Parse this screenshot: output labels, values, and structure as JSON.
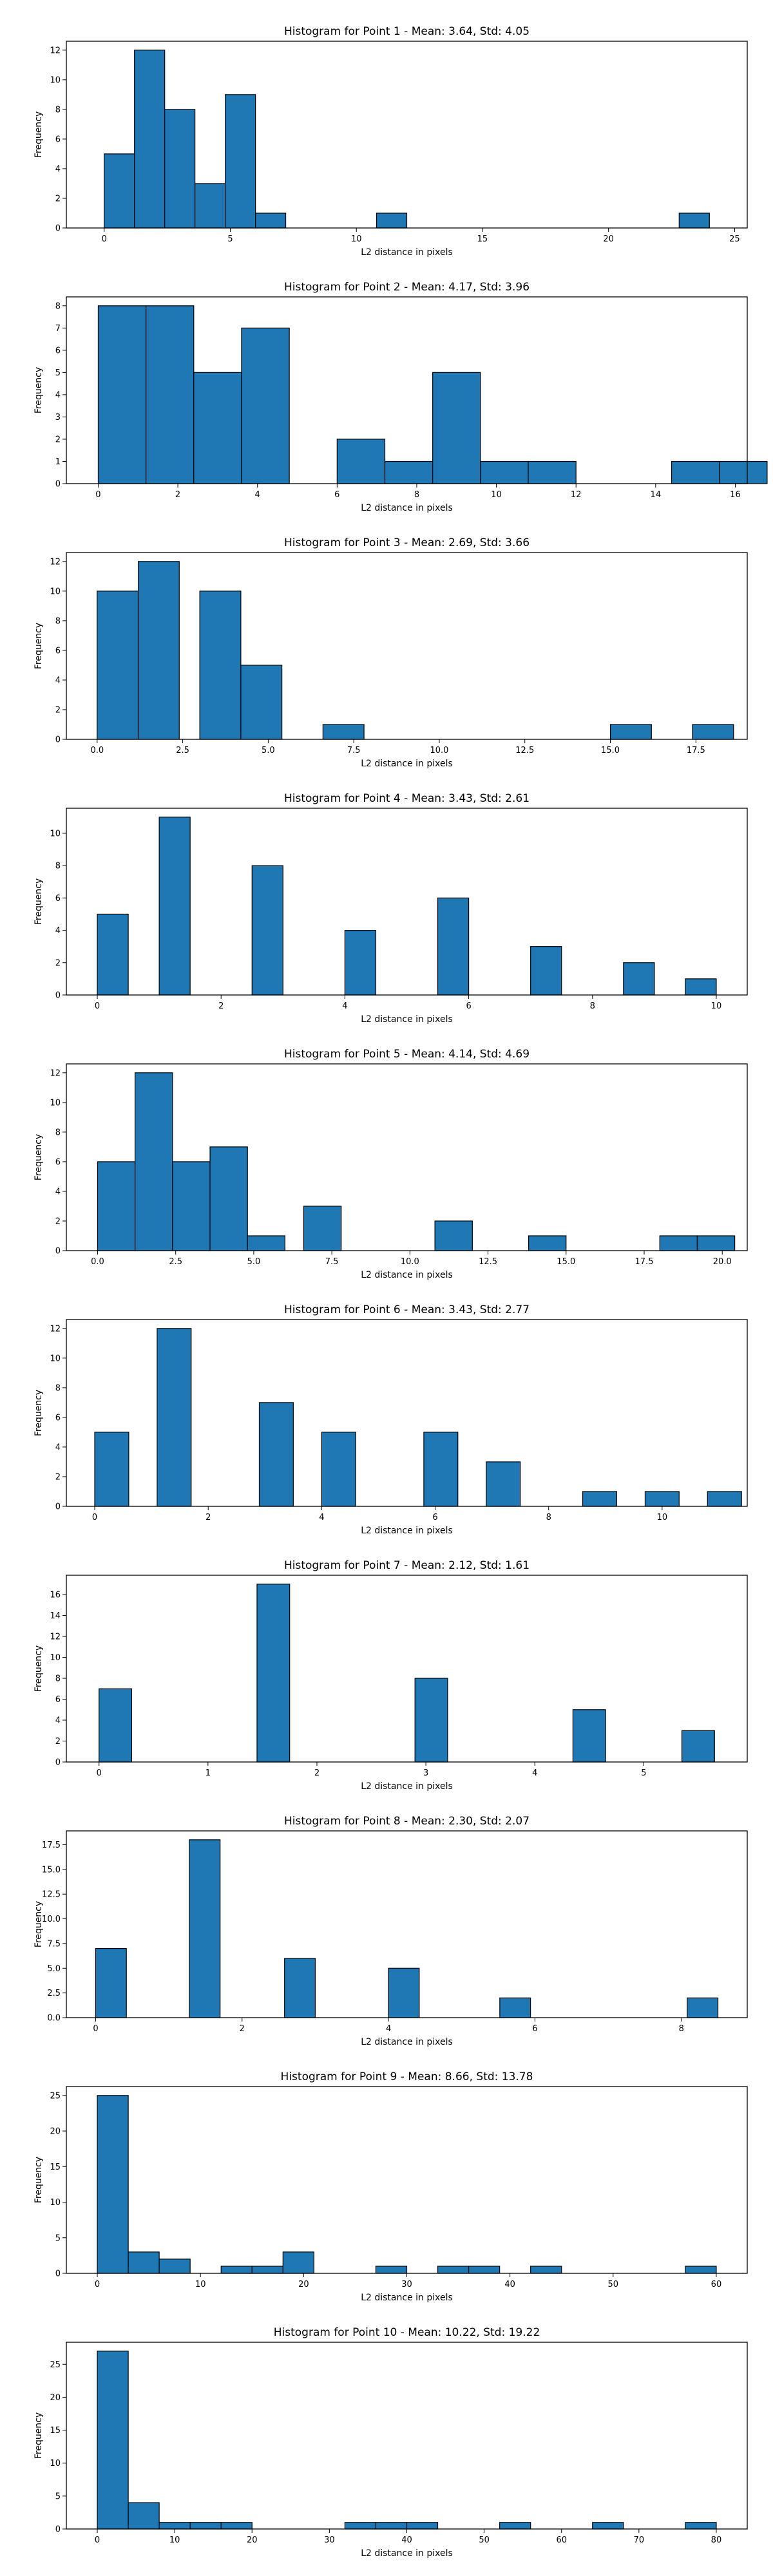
{
  "chart_data": [
    {
      "type": "bar",
      "title": "Histogram for Point 1 - Mean: 3.64, Std: 4.05",
      "xlabel": "L2 distance in pixels",
      "ylabel": "Frequency",
      "xlim": [
        -1.5,
        25.5
      ],
      "ylim": [
        0,
        12.6
      ],
      "xticks": [
        0,
        5,
        10,
        15,
        20,
        25
      ],
      "yticks": [
        0,
        2,
        4,
        6,
        8,
        10,
        12
      ],
      "bins": [
        {
          "x0": 0.0,
          "x1": 1.2,
          "value": 5
        },
        {
          "x0": 1.2,
          "x1": 2.4,
          "value": 12
        },
        {
          "x0": 2.4,
          "x1": 3.6,
          "value": 8
        },
        {
          "x0": 3.6,
          "x1": 4.8,
          "value": 3
        },
        {
          "x0": 4.8,
          "x1": 6.0,
          "value": 9
        },
        {
          "x0": 6.0,
          "x1": 7.2,
          "value": 1
        },
        {
          "x0": 10.8,
          "x1": 12.0,
          "value": 1
        },
        {
          "x0": 22.8,
          "x1": 24.0,
          "value": 1
        }
      ]
    },
    {
      "type": "bar",
      "title": "Histogram for Point 2 - Mean: 4.17, Std: 3.96",
      "xlabel": "L2 distance in pixels",
      "ylabel": "Frequency",
      "xlim": [
        -0.8,
        16.3
      ],
      "ylim": [
        0,
        8.4
      ],
      "xticks": [
        0,
        2,
        4,
        6,
        8,
        10,
        12,
        14,
        16
      ],
      "yticks": [
        0,
        1,
        2,
        3,
        4,
        5,
        6,
        7,
        8
      ],
      "bins": [
        {
          "x0": 0.0,
          "x1": 1.2,
          "value": 8
        },
        {
          "x0": 1.2,
          "x1": 2.4,
          "value": 8
        },
        {
          "x0": 2.4,
          "x1": 3.6,
          "value": 5
        },
        {
          "x0": 3.6,
          "x1": 4.8,
          "value": 7
        },
        {
          "x0": 6.0,
          "x1": 7.2,
          "value": 2
        },
        {
          "x0": 7.2,
          "x1": 8.4,
          "value": 1
        },
        {
          "x0": 8.4,
          "x1": 9.6,
          "value": 5
        },
        {
          "x0": 9.6,
          "x1": 10.8,
          "value": 1
        },
        {
          "x0": 10.8,
          "x1": 12.0,
          "value": 1
        },
        {
          "x0": 14.4,
          "x1": 15.6,
          "value": 1
        },
        {
          "x0": 15.6,
          "x1": 16.8,
          "value": 1
        }
      ]
    },
    {
      "type": "bar",
      "title": "Histogram for Point 3 - Mean: 2.69, Std: 3.66",
      "xlabel": "L2 distance in pixels",
      "ylabel": "Frequency",
      "xlim": [
        -0.9,
        19.0
      ],
      "ylim": [
        0,
        12.6
      ],
      "xticks": [
        0.0,
        2.5,
        5.0,
        7.5,
        10.0,
        12.5,
        15.0,
        17.5
      ],
      "yticks": [
        0,
        2,
        4,
        6,
        8,
        10,
        12
      ],
      "bins": [
        {
          "x0": 0.0,
          "x1": 1.2,
          "value": 10
        },
        {
          "x0": 1.2,
          "x1": 2.4,
          "value": 12
        },
        {
          "x0": 3.0,
          "x1": 4.2,
          "value": 10
        },
        {
          "x0": 4.2,
          "x1": 5.4,
          "value": 5
        },
        {
          "x0": 6.6,
          "x1": 7.8,
          "value": 1
        },
        {
          "x0": 15.0,
          "x1": 16.2,
          "value": 1
        },
        {
          "x0": 17.4,
          "x1": 18.6,
          "value": 1
        }
      ]
    },
    {
      "type": "bar",
      "title": "Histogram for Point 4 - Mean: 3.43, Std: 2.61",
      "xlabel": "L2 distance in pixels",
      "ylabel": "Frequency",
      "xlim": [
        -0.5,
        10.5
      ],
      "ylim": [
        0,
        11.55
      ],
      "xticks": [
        0,
        2,
        4,
        6,
        8,
        10
      ],
      "yticks": [
        0,
        2,
        4,
        6,
        8,
        10
      ],
      "bins": [
        {
          "x0": 0.0,
          "x1": 0.5,
          "value": 5
        },
        {
          "x0": 1.0,
          "x1": 1.5,
          "value": 11
        },
        {
          "x0": 2.5,
          "x1": 3.0,
          "value": 8
        },
        {
          "x0": 4.0,
          "x1": 4.5,
          "value": 4
        },
        {
          "x0": 5.5,
          "x1": 6.0,
          "value": 6
        },
        {
          "x0": 7.0,
          "x1": 7.5,
          "value": 3
        },
        {
          "x0": 8.5,
          "x1": 9.0,
          "value": 2
        },
        {
          "x0": 9.5,
          "x1": 10.0,
          "value": 1
        }
      ]
    },
    {
      "type": "bar",
      "title": "Histogram for Point 5 - Mean: 4.14, Std: 4.69",
      "xlabel": "L2 distance in pixels",
      "ylabel": "Frequency",
      "xlim": [
        -1.0,
        20.8
      ],
      "ylim": [
        0,
        12.6
      ],
      "xticks": [
        0.0,
        2.5,
        5.0,
        7.5,
        10.0,
        12.5,
        15.0,
        17.5,
        20.0
      ],
      "yticks": [
        0,
        2,
        4,
        6,
        8,
        10,
        12
      ],
      "bins": [
        {
          "x0": 0.0,
          "x1": 1.2,
          "value": 6
        },
        {
          "x0": 1.2,
          "x1": 2.4,
          "value": 12
        },
        {
          "x0": 2.4,
          "x1": 3.6,
          "value": 6
        },
        {
          "x0": 3.6,
          "x1": 4.8,
          "value": 7
        },
        {
          "x0": 4.8,
          "x1": 6.0,
          "value": 1
        },
        {
          "x0": 6.6,
          "x1": 7.8,
          "value": 3
        },
        {
          "x0": 10.8,
          "x1": 12.0,
          "value": 2
        },
        {
          "x0": 13.8,
          "x1": 15.0,
          "value": 1
        },
        {
          "x0": 18.0,
          "x1": 19.2,
          "value": 1
        },
        {
          "x0": 19.2,
          "x1": 20.4,
          "value": 1
        }
      ]
    },
    {
      "type": "bar",
      "title": "Histogram for Point 6 - Mean: 3.43, Std: 2.77",
      "xlabel": "L2 distance in pixels",
      "ylabel": "Frequency",
      "xlim": [
        -0.5,
        11.5
      ],
      "ylim": [
        0,
        12.6
      ],
      "xticks": [
        0,
        2,
        4,
        6,
        8,
        10
      ],
      "yticks": [
        0,
        2,
        4,
        6,
        8,
        10,
        12
      ],
      "bins": [
        {
          "x0": 0.0,
          "x1": 0.6,
          "value": 5
        },
        {
          "x0": 1.1,
          "x1": 1.7,
          "value": 12
        },
        {
          "x0": 2.9,
          "x1": 3.5,
          "value": 7
        },
        {
          "x0": 4.0,
          "x1": 4.6,
          "value": 5
        },
        {
          "x0": 5.8,
          "x1": 6.4,
          "value": 5
        },
        {
          "x0": 6.9,
          "x1": 7.5,
          "value": 3
        },
        {
          "x0": 8.6,
          "x1": 9.2,
          "value": 1
        },
        {
          "x0": 9.7,
          "x1": 10.3,
          "value": 1
        },
        {
          "x0": 10.8,
          "x1": 11.4,
          "value": 1
        }
      ]
    },
    {
      "type": "bar",
      "title": "Histogram for Point 7 - Mean: 2.12, Std: 1.61",
      "xlabel": "L2 distance in pixels",
      "ylabel": "Frequency",
      "xlim": [
        -0.3,
        5.95
      ],
      "ylim": [
        0,
        17.85
      ],
      "xticks": [
        0,
        1,
        2,
        3,
        4,
        5
      ],
      "yticks": [
        0,
        2,
        4,
        6,
        8,
        10,
        12,
        14,
        16
      ],
      "bins": [
        {
          "x0": 0.0,
          "x1": 0.3,
          "value": 7
        },
        {
          "x0": 1.45,
          "x1": 1.75,
          "value": 17
        },
        {
          "x0": 2.9,
          "x1": 3.2,
          "value": 8
        },
        {
          "x0": 4.35,
          "x1": 4.65,
          "value": 5
        },
        {
          "x0": 5.35,
          "x1": 5.65,
          "value": 3
        }
      ]
    },
    {
      "type": "bar",
      "title": "Histogram for Point 8 - Mean: 2.30, Std: 2.07",
      "xlabel": "L2 distance in pixels",
      "ylabel": "Frequency",
      "xlim": [
        -0.4,
        8.9
      ],
      "ylim": [
        0,
        18.9
      ],
      "xticks": [
        0,
        2,
        4,
        6,
        8
      ],
      "yticks": [
        0.0,
        2.5,
        5.0,
        7.5,
        10.0,
        12.5,
        15.0,
        17.5
      ],
      "bins": [
        {
          "x0": 0.0,
          "x1": 0.42,
          "value": 7
        },
        {
          "x0": 1.28,
          "x1": 1.7,
          "value": 18
        },
        {
          "x0": 2.58,
          "x1": 3.0,
          "value": 6
        },
        {
          "x0": 4.0,
          "x1": 4.42,
          "value": 5
        },
        {
          "x0": 5.52,
          "x1": 5.94,
          "value": 2
        },
        {
          "x0": 8.08,
          "x1": 8.5,
          "value": 2
        }
      ]
    },
    {
      "type": "bar",
      "title": "Histogram for Point 9 - Mean: 8.66, Std: 13.78",
      "xlabel": "L2 distance in pixels",
      "ylabel": "Frequency",
      "xlim": [
        -3.0,
        63.0
      ],
      "ylim": [
        0,
        26.25
      ],
      "xticks": [
        0,
        10,
        20,
        30,
        40,
        50,
        60
      ],
      "yticks": [
        0,
        5,
        10,
        15,
        20,
        25
      ],
      "bins": [
        {
          "x0": 0.0,
          "x1": 3.0,
          "value": 25
        },
        {
          "x0": 3.0,
          "x1": 6.0,
          "value": 3
        },
        {
          "x0": 6.0,
          "x1": 9.0,
          "value": 2
        },
        {
          "x0": 12.0,
          "x1": 15.0,
          "value": 1
        },
        {
          "x0": 15.0,
          "x1": 18.0,
          "value": 1
        },
        {
          "x0": 18.0,
          "x1": 21.0,
          "value": 3
        },
        {
          "x0": 27.0,
          "x1": 30.0,
          "value": 1
        },
        {
          "x0": 33.0,
          "x1": 36.0,
          "value": 1
        },
        {
          "x0": 36.0,
          "x1": 39.0,
          "value": 1
        },
        {
          "x0": 42.0,
          "x1": 45.0,
          "value": 1
        },
        {
          "x0": 57.0,
          "x1": 60.0,
          "value": 1
        }
      ]
    },
    {
      "type": "bar",
      "title": "Histogram for Point 10 - Mean: 10.22, Std: 19.22",
      "xlabel": "L2 distance in pixels",
      "ylabel": "Frequency",
      "xlim": [
        -4.0,
        84.0
      ],
      "ylim": [
        0,
        28.35
      ],
      "xticks": [
        0,
        10,
        20,
        30,
        40,
        50,
        60,
        70,
        80
      ],
      "yticks": [
        0,
        5,
        10,
        15,
        20,
        25
      ],
      "bins": [
        {
          "x0": 0.0,
          "x1": 4.0,
          "value": 27
        },
        {
          "x0": 4.0,
          "x1": 8.0,
          "value": 4
        },
        {
          "x0": 8.0,
          "x1": 12.0,
          "value": 1
        },
        {
          "x0": 12.0,
          "x1": 16.0,
          "value": 1
        },
        {
          "x0": 16.0,
          "x1": 20.0,
          "value": 1
        },
        {
          "x0": 32.0,
          "x1": 36.0,
          "value": 1
        },
        {
          "x0": 36.0,
          "x1": 40.0,
          "value": 1
        },
        {
          "x0": 40.0,
          "x1": 44.0,
          "value": 1
        },
        {
          "x0": 52.0,
          "x1": 56.0,
          "value": 1
        },
        {
          "x0": 64.0,
          "x1": 68.0,
          "value": 1
        },
        {
          "x0": 76.0,
          "x1": 80.0,
          "value": 1
        }
      ]
    }
  ],
  "colors": {
    "bar_fill": "#1f77b4",
    "bar_edge": "#000000",
    "axes": "#000000"
  }
}
